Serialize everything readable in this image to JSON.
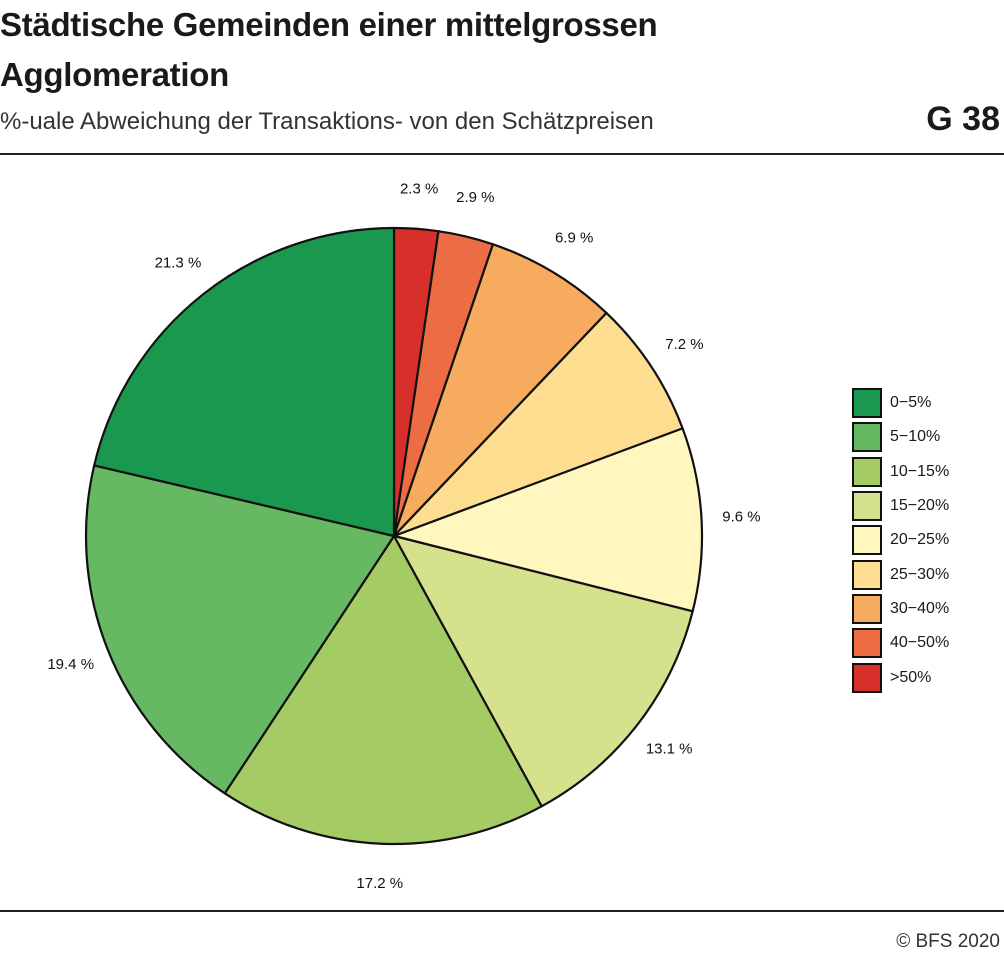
{
  "header": {
    "title": "Städtische Gemeinden einer mittelgrossen Agglomeration",
    "subtitle": "%-uale Abweichung der Transaktions- von den Schätzpreisen",
    "chart_id": "G 38"
  },
  "footer": {
    "copyright": "© BFS 2020"
  },
  "chart_data": {
    "type": "pie",
    "title": "Städtische Gemeinden einer mittelgrossen Agglomeration",
    "subtitle": "%-uale Abweichung der Transaktions- von den Schätzpreisen",
    "start": "12 o'clock",
    "direction": "clockwise",
    "legend_position": "right",
    "slices": [
      {
        "category": ">50%",
        "value": 2.3,
        "label": "2.3 %",
        "color": "#d7302a"
      },
      {
        "category": "40−50%",
        "value": 2.9,
        "label": "2.9 %",
        "color": "#ec6c43"
      },
      {
        "category": "30−40%",
        "value": 6.9,
        "label": "6.9 %",
        "color": "#f6ab5e"
      },
      {
        "category": "25−30%",
        "value": 7.2,
        "label": "7.2 %",
        "color": "#fddd8f"
      },
      {
        "category": "20−25%",
        "value": 9.6,
        "label": "9.6 %",
        "color": "#fff7bf"
      },
      {
        "category": "15−20%",
        "value": 13.1,
        "label": "13.1 %",
        "color": "#d6e18d"
      },
      {
        "category": "10−15%",
        "value": 17.2,
        "label": "17.2 %",
        "color": "#a4cb64"
      },
      {
        "category": "5−10%",
        "value": 19.4,
        "label": "19.4 %",
        "color": "#66b863"
      },
      {
        "category": "0−5%",
        "value": 21.3,
        "label": "21.3 %",
        "color": "#1b984f"
      }
    ],
    "legend": [
      {
        "label": "0−5%",
        "color": "#1b984f"
      },
      {
        "label": "5−10%",
        "color": "#66b863"
      },
      {
        "label": "10−15%",
        "color": "#a4cb64"
      },
      {
        "label": "15−20%",
        "color": "#d6e18d"
      },
      {
        "label": "20−25%",
        "color": "#fff7bf"
      },
      {
        "label": "25−30%",
        "color": "#fddd8f"
      },
      {
        "label": "30−40%",
        "color": "#f6ab5e"
      },
      {
        "label": "40−50%",
        "color": "#ec6c43"
      },
      {
        "label": ">50%",
        "color": "#d7302a"
      }
    ]
  }
}
